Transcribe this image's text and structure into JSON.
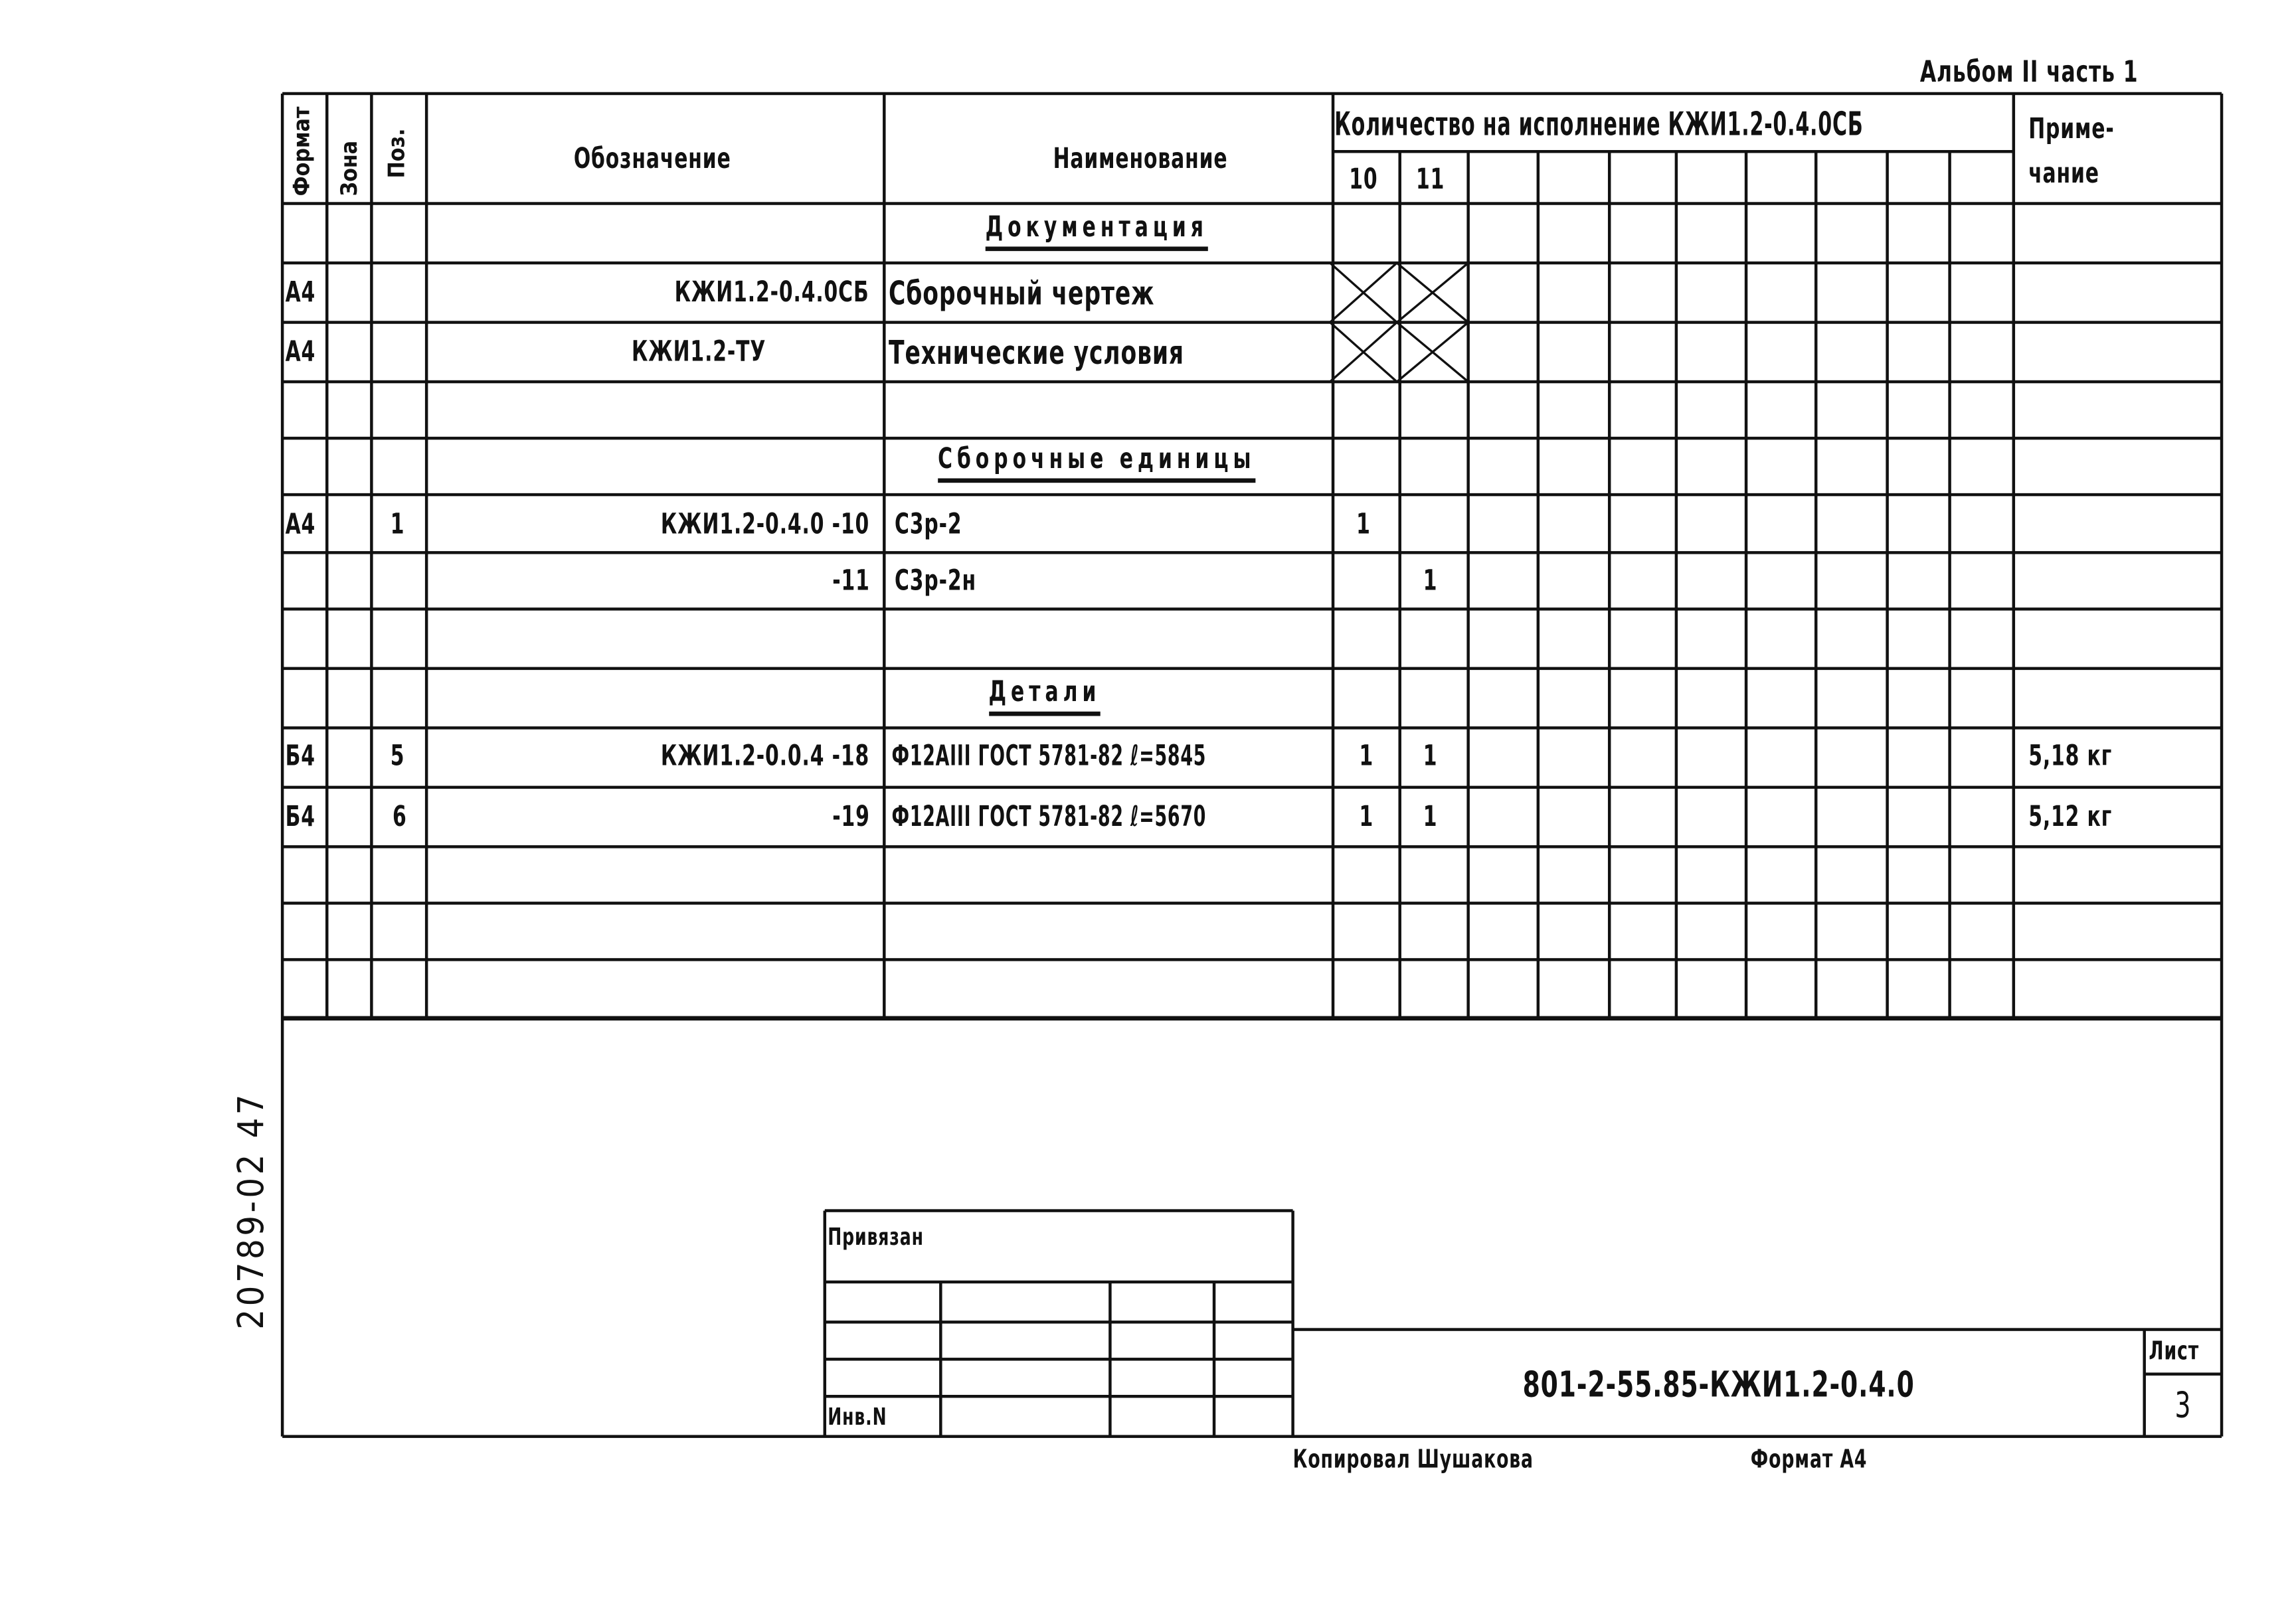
{
  "album_label": "Альбом II часть 1",
  "inventory_number": "20789-02 47",
  "header": {
    "format": "Формат",
    "zone": "Зона",
    "pos": "Поз.",
    "designation": "Обозначение",
    "name": "Наименование",
    "quantity": "Количество на исполнение КЖИ1.2-0.4.0СБ",
    "variants": [
      "10",
      "11"
    ],
    "note_line1": "Приме-",
    "note_line2": "чание"
  },
  "sections": {
    "documentation": "Документация",
    "assembly_units": "Сборочные единицы",
    "details": "Детали"
  },
  "rows": [
    {
      "format": "А4",
      "zone": "",
      "pos": "",
      "designation": "КЖИ1.2-0.4.0СБ",
      "name": "Сборочный чертеж",
      "q10": "",
      "q11": "",
      "crossed": true,
      "note": ""
    },
    {
      "format": "А4",
      "zone": "",
      "pos": "",
      "designation": "КЖИ1.2-ТУ",
      "name": "Технические условия",
      "q10": "",
      "q11": "",
      "crossed": true,
      "note": ""
    },
    {
      "format": "А4",
      "zone": "",
      "pos": "1",
      "designation": "КЖИ1.2-0.4.0 -10",
      "name": "С3р-2",
      "q10": "1",
      "q11": "",
      "note": ""
    },
    {
      "format": "",
      "zone": "",
      "pos": "",
      "designation": "-11",
      "name": "С3р-2н",
      "q10": "",
      "q11": "1",
      "note": ""
    },
    {
      "format": "Б4",
      "zone": "",
      "pos": "5",
      "designation": "КЖИ1.2-0.0.4 -18",
      "name": "Ф12АIII ГОСТ 5781-82 ℓ=5845",
      "q10": "1",
      "q11": "1",
      "note": "5,18 кг"
    },
    {
      "format": "Б4",
      "zone": "",
      "pos": "6",
      "designation": "-19",
      "name": "Ф12АIII ГОСТ 5781-82 ℓ=5670",
      "q10": "1",
      "q11": "1",
      "note": "5,12 кг"
    }
  ],
  "stamp": {
    "attached": "Привязан",
    "inv_no": "Инв.N",
    "document_code": "801-2-55.85-КЖИ1.2-0.4.0",
    "sheet_label": "Лист",
    "sheet_number": "3"
  },
  "footer": {
    "copied_by": "Копировал Шушакова",
    "format": "Формат А4"
  }
}
